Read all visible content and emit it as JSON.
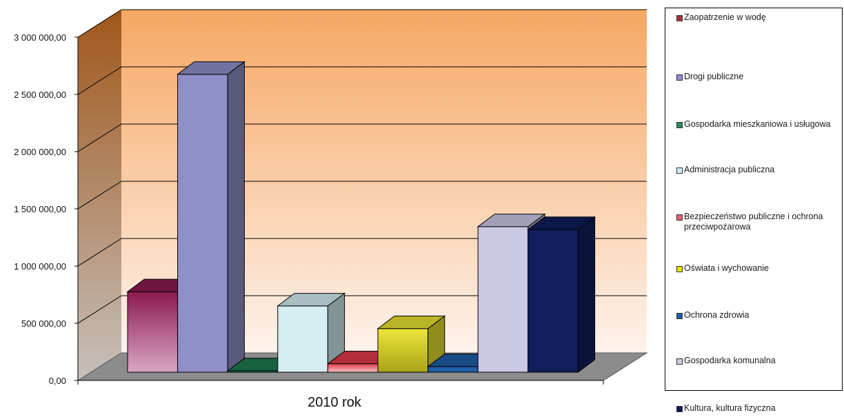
{
  "chart_data": {
    "type": "bar",
    "style": "3d",
    "xlabel": "2010 rok",
    "ylim": [
      0,
      3000000
    ],
    "y_ticks": [
      "0,00",
      "500 000,00",
      "1 000 000,00",
      "1 500 000,00",
      "2 000 000,00",
      "2 500 000,00",
      "3 000 000,00"
    ],
    "y_tick_values": [
      0,
      500000,
      1000000,
      1500000,
      2000000,
      2500000,
      3000000
    ],
    "grid": true,
    "legend_position": "right",
    "background": {
      "top": "#f6a763",
      "bottom": "#fef3ec"
    },
    "series": [
      {
        "name": "Zaopatrzenie w wodę",
        "value": 710000,
        "color": "#8b1a4f",
        "swatch": "#a3343f"
      },
      {
        "name": "Drogi publiczne",
        "value": 2630000,
        "color": "#9090c8",
        "swatch": "#8f8fd0"
      },
      {
        "name": "Gospodarka mieszkaniowa i usługowa",
        "value": 5000,
        "color": "#1e7a4e",
        "swatch": "#2a8a5a"
      },
      {
        "name": "Administracja publiczna",
        "value": 585000,
        "color": "#d4eef2",
        "swatch": "#cfeef4"
      },
      {
        "name": "Bezpieczeństwo publiczne i ochrona przeciwpożarowa",
        "value": 75000,
        "color": "#e03a4a",
        "swatch": "#e8606a"
      },
      {
        "name": "Oświata i wychowanie",
        "value": 385000,
        "color": "#e8e230",
        "swatch": "#e8e000"
      },
      {
        "name": "Ochrona zdrowia",
        "value": 50000,
        "color": "#1d5fa8",
        "swatch": "#1d5fa8"
      },
      {
        "name": "Gospodarka komunalna",
        "value": 1285000,
        "color": "#cbc8e6",
        "swatch": "#cfcbe6"
      },
      {
        "name": "Kultura, kultura fizyczna",
        "value": 1260000,
        "color": "#101e5c",
        "swatch": "#0e1a55"
      }
    ]
  }
}
